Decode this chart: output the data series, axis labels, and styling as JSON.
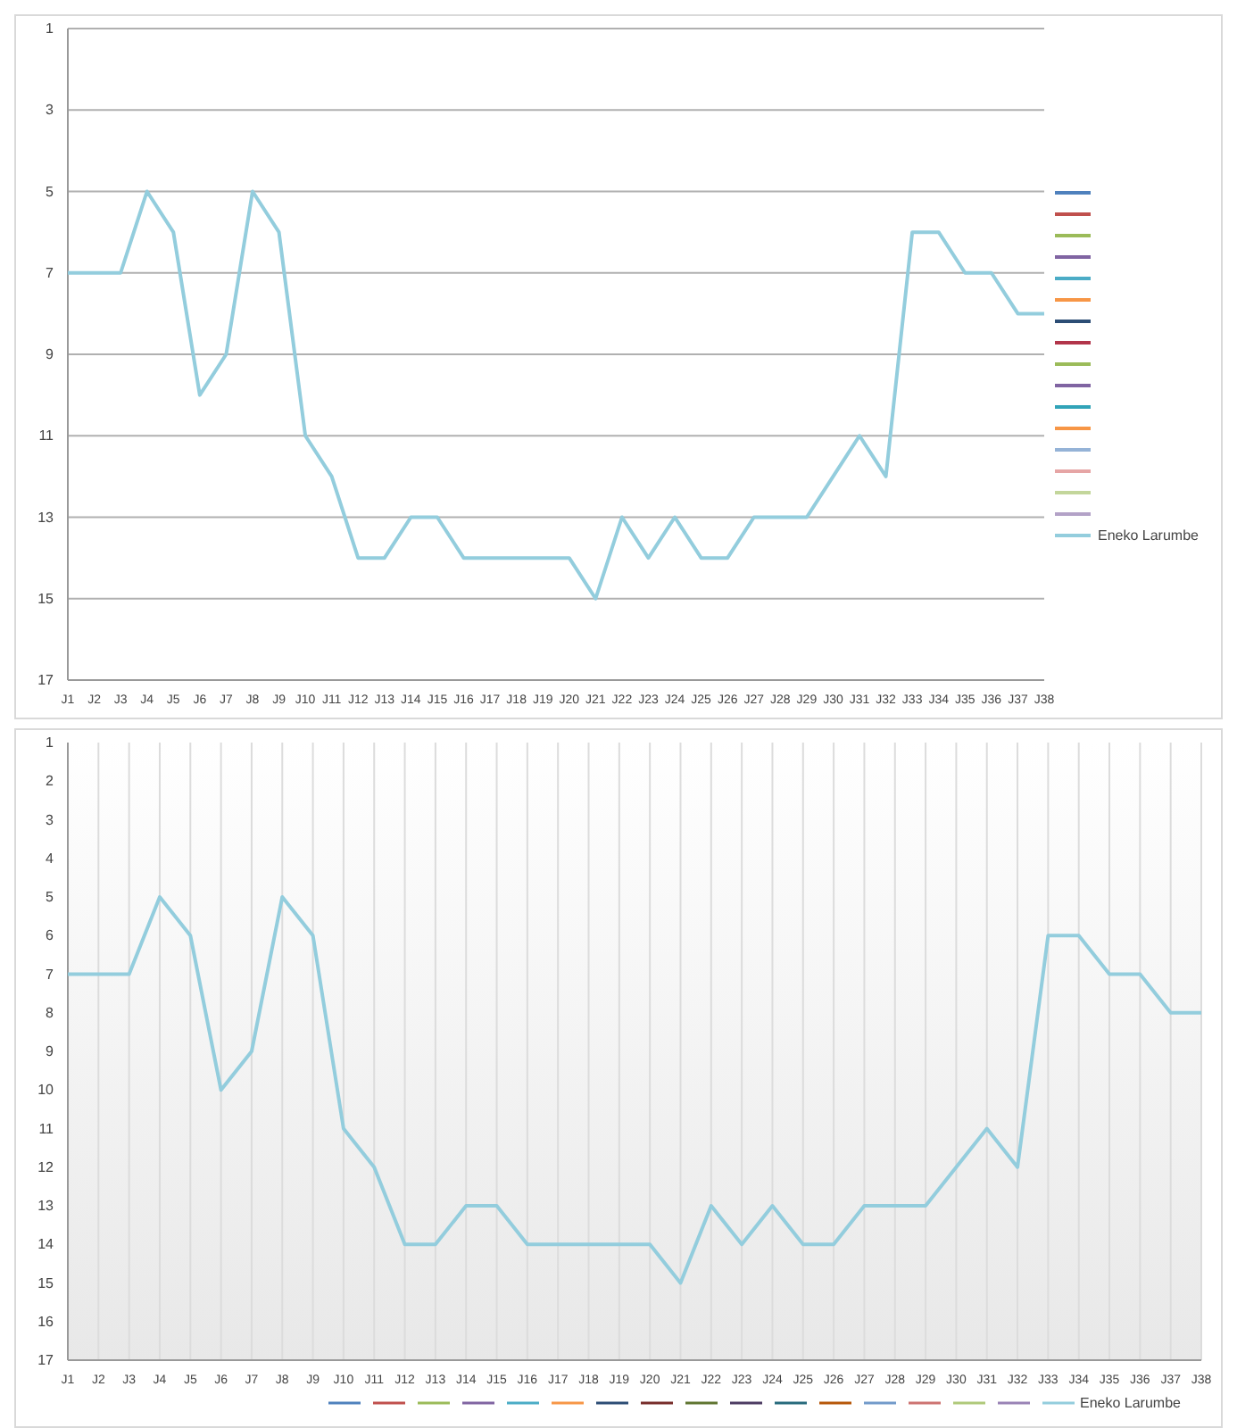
{
  "chart_data": [
    {
      "type": "line",
      "categories": [
        "J1",
        "J2",
        "J3",
        "J4",
        "J5",
        "J6",
        "J7",
        "J8",
        "J9",
        "J10",
        "J11",
        "J12",
        "J13",
        "J14",
        "J15",
        "J16",
        "J17",
        "J18",
        "J19",
        "J20",
        "J21",
        "J22",
        "J23",
        "J24",
        "J25",
        "J26",
        "J27",
        "J28",
        "J29",
        "J30",
        "J31",
        "J32",
        "J33",
        "J34",
        "J35",
        "J36",
        "J37",
        "J38"
      ],
      "ylim": [
        17,
        1
      ],
      "yticks": [
        1,
        3,
        5,
        7,
        9,
        11,
        13,
        15,
        17
      ],
      "grid": "y",
      "legend": "right",
      "series": [
        {
          "color": "#4f81bd",
          "values": [
            null,
            null,
            null,
            null,
            null,
            null,
            null,
            null,
            null,
            null,
            null,
            null,
            null,
            null,
            null,
            null,
            null,
            null,
            null,
            null,
            null,
            null,
            null,
            null,
            null,
            null,
            null,
            null,
            null,
            null,
            null,
            null,
            null,
            null,
            null,
            null,
            null,
            null
          ]
        },
        {
          "color": "#c0504d",
          "values": [
            null,
            null,
            null,
            null,
            null,
            null,
            null,
            null,
            null,
            null,
            null,
            null,
            null,
            null,
            null,
            null,
            null,
            null,
            null,
            null,
            null,
            null,
            null,
            null,
            null,
            null,
            null,
            null,
            null,
            null,
            null,
            null,
            null,
            null,
            null,
            null,
            null,
            null
          ]
        },
        {
          "color": "#9bbb59",
          "values": [
            null,
            null,
            null,
            null,
            null,
            null,
            null,
            null,
            null,
            null,
            null,
            null,
            null,
            null,
            null,
            null,
            null,
            null,
            null,
            null,
            null,
            null,
            null,
            null,
            null,
            null,
            null,
            null,
            null,
            null,
            null,
            null,
            null,
            null,
            null,
            null,
            null,
            null
          ]
        },
        {
          "color": "#8064a2",
          "values": [
            null,
            null,
            null,
            null,
            null,
            null,
            null,
            null,
            null,
            null,
            null,
            null,
            null,
            null,
            null,
            null,
            null,
            null,
            null,
            null,
            null,
            null,
            null,
            null,
            null,
            null,
            null,
            null,
            null,
            null,
            null,
            null,
            null,
            null,
            null,
            null,
            null,
            null
          ]
        },
        {
          "color": "#4bacc6",
          "values": [
            null,
            null,
            null,
            null,
            null,
            null,
            null,
            null,
            null,
            null,
            null,
            null,
            null,
            null,
            null,
            null,
            null,
            null,
            null,
            null,
            null,
            null,
            null,
            null,
            null,
            null,
            null,
            null,
            null,
            null,
            null,
            null,
            null,
            null,
            null,
            null,
            null,
            null
          ]
        },
        {
          "color": "#f79646",
          "values": [
            null,
            null,
            null,
            null,
            null,
            null,
            null,
            null,
            null,
            null,
            null,
            null,
            null,
            null,
            null,
            null,
            null,
            null,
            null,
            null,
            null,
            null,
            null,
            null,
            null,
            null,
            null,
            null,
            null,
            null,
            null,
            null,
            null,
            null,
            null,
            null,
            null,
            null
          ]
        },
        {
          "color": "#2c4d75",
          "values": [
            null,
            null,
            null,
            null,
            null,
            null,
            null,
            null,
            null,
            null,
            null,
            null,
            null,
            null,
            null,
            null,
            null,
            null,
            null,
            null,
            null,
            null,
            null,
            null,
            null,
            null,
            null,
            null,
            null,
            null,
            null,
            null,
            null,
            null,
            null,
            null,
            null,
            null
          ]
        },
        {
          "color": "#b2354a",
          "values": [
            null,
            null,
            null,
            null,
            null,
            null,
            null,
            null,
            null,
            null,
            null,
            null,
            null,
            null,
            null,
            null,
            null,
            null,
            null,
            null,
            null,
            null,
            null,
            null,
            null,
            null,
            null,
            null,
            null,
            null,
            null,
            null,
            null,
            null,
            null,
            null,
            null,
            null
          ]
        },
        {
          "color": "#9bbb59",
          "values": [
            null,
            null,
            null,
            null,
            null,
            null,
            null,
            null,
            null,
            null,
            null,
            null,
            null,
            null,
            null,
            null,
            null,
            null,
            null,
            null,
            null,
            null,
            null,
            null,
            null,
            null,
            null,
            null,
            null,
            null,
            null,
            null,
            null,
            null,
            null,
            null,
            null,
            null
          ]
        },
        {
          "color": "#8064a2",
          "values": [
            null,
            null,
            null,
            null,
            null,
            null,
            null,
            null,
            null,
            null,
            null,
            null,
            null,
            null,
            null,
            null,
            null,
            null,
            null,
            null,
            null,
            null,
            null,
            null,
            null,
            null,
            null,
            null,
            null,
            null,
            null,
            null,
            null,
            null,
            null,
            null,
            null,
            null
          ]
        },
        {
          "color": "#31a3b8",
          "values": [
            null,
            null,
            null,
            null,
            null,
            null,
            null,
            null,
            null,
            null,
            null,
            null,
            null,
            null,
            null,
            null,
            null,
            null,
            null,
            null,
            null,
            null,
            null,
            null,
            null,
            null,
            null,
            null,
            null,
            null,
            null,
            null,
            null,
            null,
            null,
            null,
            null,
            null
          ]
        },
        {
          "color": "#f79646",
          "values": [
            null,
            null,
            null,
            null,
            null,
            null,
            null,
            null,
            null,
            null,
            null,
            null,
            null,
            null,
            null,
            null,
            null,
            null,
            null,
            null,
            null,
            null,
            null,
            null,
            null,
            null,
            null,
            null,
            null,
            null,
            null,
            null,
            null,
            null,
            null,
            null,
            null,
            null
          ]
        },
        {
          "color": "#95b3d7",
          "values": [
            null,
            null,
            null,
            null,
            null,
            null,
            null,
            null,
            null,
            null,
            null,
            null,
            null,
            null,
            null,
            null,
            null,
            null,
            null,
            null,
            null,
            null,
            null,
            null,
            null,
            null,
            null,
            null,
            null,
            null,
            null,
            null,
            null,
            null,
            null,
            null,
            null,
            null
          ]
        },
        {
          "color": "#e6a5a5",
          "values": [
            null,
            null,
            null,
            null,
            null,
            null,
            null,
            null,
            null,
            null,
            null,
            null,
            null,
            null,
            null,
            null,
            null,
            null,
            null,
            null,
            null,
            null,
            null,
            null,
            null,
            null,
            null,
            null,
            null,
            null,
            null,
            null,
            null,
            null,
            null,
            null,
            null,
            null
          ]
        },
        {
          "color": "#c3d69b",
          "values": [
            null,
            null,
            null,
            null,
            null,
            null,
            null,
            null,
            null,
            null,
            null,
            null,
            null,
            null,
            null,
            null,
            null,
            null,
            null,
            null,
            null,
            null,
            null,
            null,
            null,
            null,
            null,
            null,
            null,
            null,
            null,
            null,
            null,
            null,
            null,
            null,
            null,
            null
          ]
        },
        {
          "color": "#b3a2c7",
          "values": [
            null,
            null,
            null,
            null,
            null,
            null,
            null,
            null,
            null,
            null,
            null,
            null,
            null,
            null,
            null,
            null,
            null,
            null,
            null,
            null,
            null,
            null,
            null,
            null,
            null,
            null,
            null,
            null,
            null,
            null,
            null,
            null,
            null,
            null,
            null,
            null,
            null,
            null
          ]
        },
        {
          "name": "Eneko Larumbe",
          "color": "#93cddd",
          "values": [
            7,
            7,
            7,
            5,
            6,
            10,
            9,
            5,
            6,
            11,
            12,
            14,
            14,
            13,
            13,
            14,
            14,
            14,
            14,
            14,
            15,
            13,
            14,
            13,
            14,
            14,
            13,
            13,
            13,
            12,
            11,
            12,
            6,
            6,
            7,
            7,
            8,
            8
          ]
        }
      ]
    },
    {
      "type": "line",
      "categories": [
        "J1",
        "J2",
        "J3",
        "J4",
        "J5",
        "J6",
        "J7",
        "J8",
        "J9",
        "J10",
        "J11",
        "J12",
        "J13",
        "J14",
        "J15",
        "J16",
        "J17",
        "J18",
        "J19",
        "J20",
        "J21",
        "J22",
        "J23",
        "J24",
        "J25",
        "J26",
        "J27",
        "J28",
        "J29",
        "J30",
        "J31",
        "J32",
        "J33",
        "J34",
        "J35",
        "J36",
        "J37",
        "J38"
      ],
      "ylim": [
        17,
        1
      ],
      "yticks": [
        1,
        2,
        3,
        4,
        5,
        6,
        7,
        8,
        9,
        10,
        11,
        12,
        13,
        14,
        15,
        16,
        17
      ],
      "grid": "x",
      "legend": "bottom",
      "series": [
        {
          "color": "#4f81bd",
          "values": [
            null,
            null,
            null,
            null,
            null,
            null,
            null,
            null,
            null,
            null,
            null,
            null,
            null,
            null,
            null,
            null,
            null,
            null,
            null,
            null,
            null,
            null,
            null,
            null,
            null,
            null,
            null,
            null,
            null,
            null,
            null,
            null,
            null,
            null,
            null,
            null,
            null,
            null
          ]
        },
        {
          "color": "#c0504d",
          "values": [
            null,
            null,
            null,
            null,
            null,
            null,
            null,
            null,
            null,
            null,
            null,
            null,
            null,
            null,
            null,
            null,
            null,
            null,
            null,
            null,
            null,
            null,
            null,
            null,
            null,
            null,
            null,
            null,
            null,
            null,
            null,
            null,
            null,
            null,
            null,
            null,
            null,
            null
          ]
        },
        {
          "color": "#9bbb59",
          "values": [
            null,
            null,
            null,
            null,
            null,
            null,
            null,
            null,
            null,
            null,
            null,
            null,
            null,
            null,
            null,
            null,
            null,
            null,
            null,
            null,
            null,
            null,
            null,
            null,
            null,
            null,
            null,
            null,
            null,
            null,
            null,
            null,
            null,
            null,
            null,
            null,
            null,
            null
          ]
        },
        {
          "color": "#8064a2",
          "values": [
            null,
            null,
            null,
            null,
            null,
            null,
            null,
            null,
            null,
            null,
            null,
            null,
            null,
            null,
            null,
            null,
            null,
            null,
            null,
            null,
            null,
            null,
            null,
            null,
            null,
            null,
            null,
            null,
            null,
            null,
            null,
            null,
            null,
            null,
            null,
            null,
            null,
            null
          ]
        },
        {
          "color": "#4bacc6",
          "values": [
            null,
            null,
            null,
            null,
            null,
            null,
            null,
            null,
            null,
            null,
            null,
            null,
            null,
            null,
            null,
            null,
            null,
            null,
            null,
            null,
            null,
            null,
            null,
            null,
            null,
            null,
            null,
            null,
            null,
            null,
            null,
            null,
            null,
            null,
            null,
            null,
            null,
            null
          ]
        },
        {
          "color": "#f79646",
          "values": [
            null,
            null,
            null,
            null,
            null,
            null,
            null,
            null,
            null,
            null,
            null,
            null,
            null,
            null,
            null,
            null,
            null,
            null,
            null,
            null,
            null,
            null,
            null,
            null,
            null,
            null,
            null,
            null,
            null,
            null,
            null,
            null,
            null,
            null,
            null,
            null,
            null,
            null
          ]
        },
        {
          "color": "#2c4d75",
          "values": [
            null,
            null,
            null,
            null,
            null,
            null,
            null,
            null,
            null,
            null,
            null,
            null,
            null,
            null,
            null,
            null,
            null,
            null,
            null,
            null,
            null,
            null,
            null,
            null,
            null,
            null,
            null,
            null,
            null,
            null,
            null,
            null,
            null,
            null,
            null,
            null,
            null,
            null
          ]
        },
        {
          "color": "#772c2a",
          "values": [
            null,
            null,
            null,
            null,
            null,
            null,
            null,
            null,
            null,
            null,
            null,
            null,
            null,
            null,
            null,
            null,
            null,
            null,
            null,
            null,
            null,
            null,
            null,
            null,
            null,
            null,
            null,
            null,
            null,
            null,
            null,
            null,
            null,
            null,
            null,
            null,
            null,
            null
          ]
        },
        {
          "color": "#5f7530",
          "values": [
            null,
            null,
            null,
            null,
            null,
            null,
            null,
            null,
            null,
            null,
            null,
            null,
            null,
            null,
            null,
            null,
            null,
            null,
            null,
            null,
            null,
            null,
            null,
            null,
            null,
            null,
            null,
            null,
            null,
            null,
            null,
            null,
            null,
            null,
            null,
            null,
            null,
            null
          ]
        },
        {
          "color": "#4d3b62",
          "values": [
            null,
            null,
            null,
            null,
            null,
            null,
            null,
            null,
            null,
            null,
            null,
            null,
            null,
            null,
            null,
            null,
            null,
            null,
            null,
            null,
            null,
            null,
            null,
            null,
            null,
            null,
            null,
            null,
            null,
            null,
            null,
            null,
            null,
            null,
            null,
            null,
            null,
            null
          ]
        },
        {
          "color": "#276a7c",
          "values": [
            null,
            null,
            null,
            null,
            null,
            null,
            null,
            null,
            null,
            null,
            null,
            null,
            null,
            null,
            null,
            null,
            null,
            null,
            null,
            null,
            null,
            null,
            null,
            null,
            null,
            null,
            null,
            null,
            null,
            null,
            null,
            null,
            null,
            null,
            null,
            null,
            null,
            null
          ]
        },
        {
          "color": "#b65708",
          "values": [
            null,
            null,
            null,
            null,
            null,
            null,
            null,
            null,
            null,
            null,
            null,
            null,
            null,
            null,
            null,
            null,
            null,
            null,
            null,
            null,
            null,
            null,
            null,
            null,
            null,
            null,
            null,
            null,
            null,
            null,
            null,
            null,
            null,
            null,
            null,
            null,
            null,
            null
          ]
        },
        {
          "color": "#729aca",
          "values": [
            null,
            null,
            null,
            null,
            null,
            null,
            null,
            null,
            null,
            null,
            null,
            null,
            null,
            null,
            null,
            null,
            null,
            null,
            null,
            null,
            null,
            null,
            null,
            null,
            null,
            null,
            null,
            null,
            null,
            null,
            null,
            null,
            null,
            null,
            null,
            null,
            null,
            null
          ]
        },
        {
          "color": "#cd7371",
          "values": [
            null,
            null,
            null,
            null,
            null,
            null,
            null,
            null,
            null,
            null,
            null,
            null,
            null,
            null,
            null,
            null,
            null,
            null,
            null,
            null,
            null,
            null,
            null,
            null,
            null,
            null,
            null,
            null,
            null,
            null,
            null,
            null,
            null,
            null,
            null,
            null,
            null,
            null
          ]
        },
        {
          "color": "#afc97a",
          "values": [
            null,
            null,
            null,
            null,
            null,
            null,
            null,
            null,
            null,
            null,
            null,
            null,
            null,
            null,
            null,
            null,
            null,
            null,
            null,
            null,
            null,
            null,
            null,
            null,
            null,
            null,
            null,
            null,
            null,
            null,
            null,
            null,
            null,
            null,
            null,
            null,
            null,
            null
          ]
        },
        {
          "color": "#9983b5",
          "values": [
            null,
            null,
            null,
            null,
            null,
            null,
            null,
            null,
            null,
            null,
            null,
            null,
            null,
            null,
            null,
            null,
            null,
            null,
            null,
            null,
            null,
            null,
            null,
            null,
            null,
            null,
            null,
            null,
            null,
            null,
            null,
            null,
            null,
            null,
            null,
            null,
            null,
            null
          ]
        },
        {
          "name": "Eneko Larumbe",
          "color": "#93cddd",
          "values": [
            7,
            7,
            7,
            5,
            6,
            10,
            9,
            5,
            6,
            11,
            12,
            14,
            14,
            13,
            13,
            14,
            14,
            14,
            14,
            14,
            15,
            13,
            14,
            13,
            14,
            14,
            13,
            13,
            13,
            12,
            11,
            12,
            6,
            6,
            7,
            7,
            8,
            8
          ]
        }
      ]
    }
  ]
}
